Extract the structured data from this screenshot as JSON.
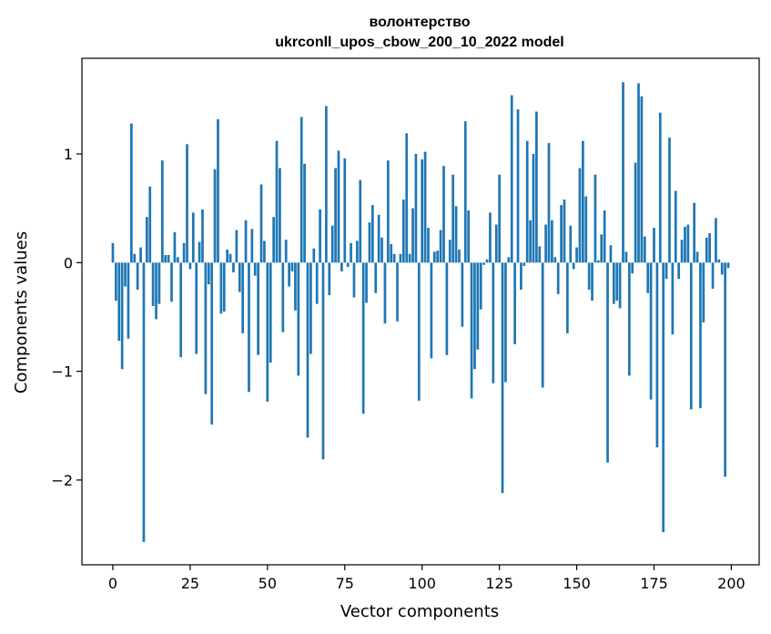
{
  "chart_data": {
    "type": "bar",
    "title": "волонтерство",
    "subtitle": "ukrconll_upos_cbow_200_10_2022 model",
    "xlabel": "Vector components",
    "ylabel": "Components values",
    "xlim": [
      -10,
      209
    ],
    "ylim": [
      -2.78,
      1.88
    ],
    "xticks": [
      0,
      25,
      50,
      75,
      100,
      125,
      150,
      175,
      200
    ],
    "xtick_labels": [
      "0",
      "25",
      "50",
      "75",
      "100",
      "125",
      "150",
      "175",
      "200"
    ],
    "yticks": [
      -2,
      -1,
      0,
      1
    ],
    "ytick_labels": [
      "−2",
      "−1",
      "0",
      "1"
    ],
    "grid": false,
    "bar_color": "#1f77b4",
    "x": [
      0,
      1,
      2,
      3,
      4,
      5,
      6,
      7,
      8,
      9,
      10,
      11,
      12,
      13,
      14,
      15,
      16,
      17,
      18,
      19,
      20,
      21,
      22,
      23,
      24,
      25,
      26,
      27,
      28,
      29,
      30,
      31,
      32,
      33,
      34,
      35,
      36,
      37,
      38,
      39,
      40,
      41,
      42,
      43,
      44,
      45,
      46,
      47,
      48,
      49,
      50,
      51,
      52,
      53,
      54,
      55,
      56,
      57,
      58,
      59,
      60,
      61,
      62,
      63,
      64,
      65,
      66,
      67,
      68,
      69,
      70,
      71,
      72,
      73,
      74,
      75,
      76,
      77,
      78,
      79,
      80,
      81,
      82,
      83,
      84,
      85,
      86,
      87,
      88,
      89,
      90,
      91,
      92,
      93,
      94,
      95,
      96,
      97,
      98,
      99,
      100,
      101,
      102,
      103,
      104,
      105,
      106,
      107,
      108,
      109,
      110,
      111,
      112,
      113,
      114,
      115,
      116,
      117,
      118,
      119,
      120,
      121,
      122,
      123,
      124,
      125,
      126,
      127,
      128,
      129,
      130,
      131,
      132,
      133,
      134,
      135,
      136,
      137,
      138,
      139,
      140,
      141,
      142,
      143,
      144,
      145,
      146,
      147,
      148,
      149,
      150,
      151,
      152,
      153,
      154,
      155,
      156,
      157,
      158,
      159,
      160,
      161,
      162,
      163,
      164,
      165,
      166,
      167,
      168,
      169,
      170,
      171,
      172,
      173,
      174,
      175,
      176,
      177,
      178,
      179,
      180,
      181,
      182,
      183,
      184,
      185,
      186,
      187,
      188,
      189,
      190,
      191,
      192,
      193,
      194,
      195,
      196,
      197,
      198,
      199
    ],
    "values": [
      0.18,
      -0.35,
      -0.72,
      -0.98,
      -0.22,
      -0.7,
      1.28,
      0.08,
      -0.25,
      0.14,
      -2.57,
      0.42,
      0.7,
      -0.4,
      -0.52,
      -0.38,
      0.94,
      0.07,
      0.07,
      -0.36,
      0.28,
      0.05,
      -0.87,
      0.18,
      1.09,
      -0.06,
      0.46,
      -0.84,
      0.19,
      0.49,
      -1.21,
      -0.2,
      -1.49,
      0.86,
      1.32,
      -0.47,
      -0.45,
      0.12,
      0.08,
      -0.09,
      0.3,
      -0.27,
      -0.65,
      0.39,
      -1.19,
      0.31,
      -0.12,
      -0.85,
      0.72,
      0.2,
      -1.28,
      -0.92,
      0.42,
      1.12,
      0.87,
      -0.64,
      0.21,
      -0.22,
      -0.08,
      -0.44,
      -1.04,
      1.34,
      0.91,
      -1.61,
      -0.84,
      0.13,
      -0.38,
      0.49,
      -1.81,
      1.44,
      -0.3,
      0.34,
      0.87,
      1.03,
      -0.08,
      0.96,
      -0.04,
      0.18,
      -0.32,
      0.2,
      0.76,
      -1.39,
      -0.37,
      0.37,
      0.53,
      -0.28,
      0.44,
      0.23,
      -0.56,
      0.94,
      0.17,
      0.08,
      -0.54,
      0.08,
      0.58,
      1.19,
      0.08,
      0.5,
      1.0,
      -1.27,
      0.95,
      1.02,
      0.32,
      -0.88,
      0.1,
      0.11,
      0.3,
      0.89,
      -0.85,
      0.21,
      0.81,
      0.52,
      0.12,
      -0.59,
      1.3,
      0.48,
      -1.25,
      -0.98,
      -0.8,
      -0.43,
      -0.02,
      0.03,
      0.46,
      -1.11,
      0.35,
      0.81,
      -2.12,
      -1.1,
      0.05,
      1.54,
      -0.75,
      1.41,
      -0.25,
      -0.03,
      1.12,
      0.39,
      1.0,
      1.39,
      0.15,
      -1.15,
      0.35,
      1.1,
      0.39,
      0.05,
      -0.29,
      0.53,
      0.58,
      -0.65,
      0.34,
      -0.06,
      0.14,
      0.87,
      1.12,
      0.61,
      -0.25,
      -0.35,
      0.81,
      0.02,
      0.26,
      0.48,
      -1.84,
      0.16,
      -0.38,
      -0.35,
      -0.42,
      1.66,
      0.1,
      -1.04,
      -0.1,
      0.92,
      1.65,
      1.53,
      0.24,
      -0.28,
      -1.26,
      0.32,
      -1.7,
      1.38,
      -2.48,
      -0.15,
      1.15,
      -0.66,
      0.66,
      -0.15,
      0.21,
      0.33,
      0.35,
      -1.35,
      0.55,
      0.1,
      -1.34,
      -0.55,
      0.23,
      0.27,
      -0.24,
      0.41,
      0.03,
      -0.11,
      -1.97,
      -0.05
    ]
  }
}
